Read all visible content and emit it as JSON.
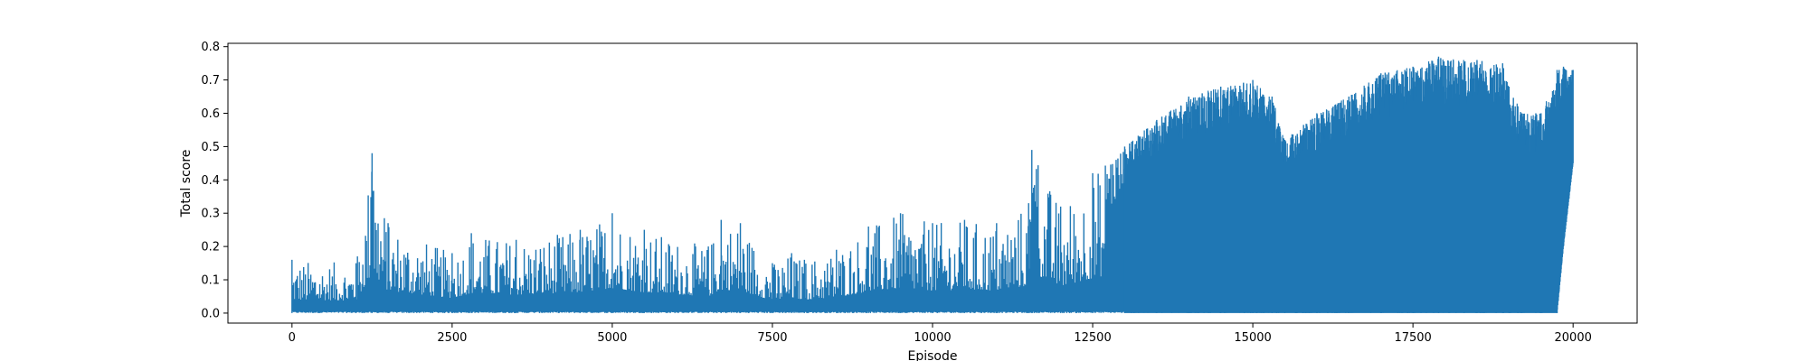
{
  "chart_data": {
    "type": "line",
    "title": "",
    "xlabel": "Episode",
    "ylabel": "Total score",
    "xlim": [
      -1000,
      21000
    ],
    "ylim": [
      -0.03,
      0.81
    ],
    "xticks": [
      0,
      2500,
      5000,
      7500,
      10000,
      12500,
      15000,
      17500,
      20000
    ],
    "xtick_labels": [
      "0",
      "2500",
      "5000",
      "7500",
      "10000",
      "12500",
      "15000",
      "17500",
      "20000"
    ],
    "yticks": [
      0.0,
      0.1,
      0.2,
      0.3,
      0.4,
      0.5,
      0.6,
      0.7,
      0.8
    ],
    "ytick_labels": [
      "0.0",
      "0.1",
      "0.2",
      "0.3",
      "0.4",
      "0.5",
      "0.6",
      "0.7",
      "0.8"
    ],
    "grid": false,
    "legend": "none",
    "series": [
      {
        "color": "#1f77b4",
        "x": [
          0,
          1000,
          1250,
          1500,
          2500,
          2800,
          3500,
          4500,
          5000,
          5500,
          6500,
          6700,
          7000,
          7500,
          7800,
          8000,
          8500,
          9000,
          9500,
          10000,
          10500,
          11000,
          11500,
          11550,
          12000,
          12500,
          13000,
          13500,
          14000,
          14500,
          15000,
          15300,
          15500,
          16000,
          16500,
          17000,
          17500,
          17900,
          18500,
          18900,
          19000,
          19200,
          19500,
          19750,
          19850,
          20000
        ],
        "upper": [
          0.16,
          0.15,
          0.48,
          0.27,
          0.18,
          0.24,
          0.22,
          0.25,
          0.3,
          0.25,
          0.2,
          0.28,
          0.27,
          0.15,
          0.18,
          0.16,
          0.19,
          0.26,
          0.3,
          0.27,
          0.28,
          0.27,
          0.33,
          0.49,
          0.32,
          0.42,
          0.5,
          0.58,
          0.65,
          0.68,
          0.7,
          0.65,
          0.52,
          0.6,
          0.65,
          0.72,
          0.74,
          0.77,
          0.76,
          0.75,
          0.68,
          0.6,
          0.6,
          0.73,
          0.74,
          0.73
        ],
        "lower": [
          0.0,
          0.0,
          0.0,
          0.0,
          0.0,
          0.0,
          0.0,
          0.0,
          0.0,
          0.0,
          0.0,
          0.0,
          0.0,
          0.0,
          0.0,
          0.0,
          0.0,
          0.0,
          0.0,
          0.0,
          0.0,
          0.0,
          0.0,
          0.0,
          0.0,
          0.0,
          0.0,
          0.0,
          0.0,
          0.0,
          0.0,
          0.0,
          0.0,
          0.0,
          0.0,
          0.0,
          0.0,
          0.0,
          0.0,
          0.0,
          0.0,
          0.0,
          0.0,
          0.0,
          0.2,
          0.45
        ]
      }
    ]
  }
}
